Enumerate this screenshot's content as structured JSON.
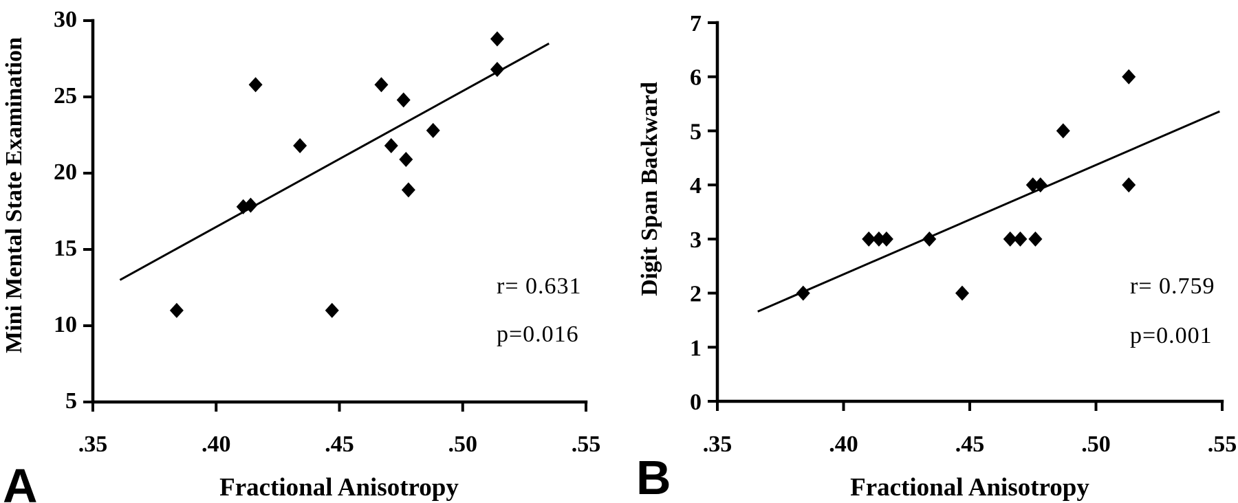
{
  "figure": {
    "background": "#ffffff",
    "foreground": "#000000",
    "panel_a_letter": "A",
    "panel_b_letter": "B"
  },
  "chart_data": [
    {
      "type": "scatter",
      "panel": "A",
      "xlabel": "Fractional Anisotropy",
      "ylabel": "Mini Mental State Examination",
      "xlim": [
        0.35,
        0.55
      ],
      "ylim": [
        5,
        30
      ],
      "grid": false,
      "marker": "diamond",
      "color": "#000000",
      "xticks": {
        "values": [
          0.35,
          0.4,
          0.45,
          0.5,
          0.55
        ],
        "labels": [
          ".35",
          ".40",
          ".45",
          ".50",
          ".55"
        ]
      },
      "yticks": {
        "values": [
          5,
          10,
          15,
          20,
          25,
          30
        ],
        "labels": [
          "5",
          "10",
          "15",
          "20",
          "25",
          "30"
        ]
      },
      "points": [
        [
          0.384,
          11.0
        ],
        [
          0.411,
          17.8
        ],
        [
          0.414,
          17.9
        ],
        [
          0.416,
          25.8
        ],
        [
          0.434,
          21.8
        ],
        [
          0.447,
          11.0
        ],
        [
          0.467,
          25.8
        ],
        [
          0.471,
          21.8
        ],
        [
          0.476,
          24.8
        ],
        [
          0.477,
          20.9
        ],
        [
          0.478,
          18.9
        ],
        [
          0.488,
          22.8
        ],
        [
          0.514,
          28.8
        ],
        [
          0.514,
          26.8
        ]
      ],
      "trendline": {
        "x1": 0.361,
        "y1": 13.0,
        "x2": 0.535,
        "y2": 28.5
      },
      "annotations": [
        "r= 0.631",
        "p=0.016"
      ],
      "r": "0.631",
      "p": "0.016"
    },
    {
      "type": "scatter",
      "panel": "B",
      "xlabel": "Fractional Anisotropy",
      "ylabel": "Digit Span Backward",
      "xlim": [
        0.35,
        0.55
      ],
      "ylim": [
        0,
        7
      ],
      "grid": false,
      "marker": "diamond",
      "color": "#000000",
      "xticks": {
        "values": [
          0.35,
          0.4,
          0.45,
          0.5,
          0.55
        ],
        "labels": [
          ".35",
          ".40",
          ".45",
          ".50",
          ".55"
        ]
      },
      "yticks": {
        "values": [
          0,
          1,
          2,
          3,
          4,
          5,
          6,
          7
        ],
        "labels": [
          "0",
          "1",
          "2",
          "3",
          "4",
          "5",
          "6",
          "7"
        ]
      },
      "points": [
        [
          0.384,
          2.0
        ],
        [
          0.41,
          3.0
        ],
        [
          0.414,
          3.0
        ],
        [
          0.417,
          3.0
        ],
        [
          0.434,
          3.0
        ],
        [
          0.447,
          2.0
        ],
        [
          0.466,
          3.0
        ],
        [
          0.47,
          3.0
        ],
        [
          0.476,
          3.0
        ],
        [
          0.475,
          4.0
        ],
        [
          0.478,
          4.0
        ],
        [
          0.487,
          5.0
        ],
        [
          0.513,
          6.0
        ],
        [
          0.513,
          4.0
        ]
      ],
      "trendline": {
        "x1": 0.366,
        "y1": 1.66,
        "x2": 0.549,
        "y2": 5.36
      },
      "annotations": [
        "r= 0.759",
        "p=0.001"
      ],
      "r": "0.759",
      "p": "0.001"
    }
  ]
}
